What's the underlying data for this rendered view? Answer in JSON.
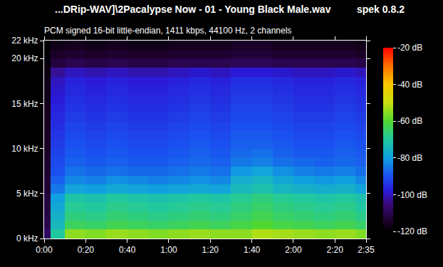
{
  "chart_data": {
    "type": "heatmap",
    "title": "...DRip-WAV]\\2Pacalypse Now - 01 - Young Black Male.wav",
    "subtitle": "PCM signed 16-bit little-endian, 1411 kbps, 44100 Hz, 2 channels",
    "annotations": [
      "spek 0.8.2"
    ],
    "xlim": [
      0,
      155
    ],
    "xticks": [
      {
        "value": 0,
        "label": "0:00"
      },
      {
        "value": 20,
        "label": "0:20"
      },
      {
        "value": 40,
        "label": "0:40"
      },
      {
        "value": 60,
        "label": "1:00"
      },
      {
        "value": 80,
        "label": "1:20"
      },
      {
        "value": 100,
        "label": "1:40"
      },
      {
        "value": 120,
        "label": "2:00"
      },
      {
        "value": 140,
        "label": "2:20"
      },
      {
        "value": 155,
        "label": "2:35"
      }
    ],
    "ylim": [
      0,
      22
    ],
    "yticks": [
      {
        "value": 0,
        "label": "0 kHz"
      },
      {
        "value": 5,
        "label": "5 kHz"
      },
      {
        "value": 10,
        "label": "10 kHz"
      },
      {
        "value": 15,
        "label": "15 kHz"
      },
      {
        "value": 20,
        "label": "20 kHz"
      },
      {
        "value": 22,
        "label": "22 kHz"
      }
    ],
    "cells": {
      "x_edges": [
        0,
        3,
        10,
        20,
        30,
        40,
        50,
        60,
        70,
        80,
        90,
        100,
        110,
        120,
        130,
        140,
        150,
        155
      ],
      "y_edges": [
        0,
        1,
        2,
        3,
        4,
        5,
        6,
        7,
        8,
        9,
        10,
        11,
        12,
        13,
        14,
        15,
        16,
        17,
        18,
        19,
        20,
        21,
        22
      ],
      "z": [
        [
          -108,
          -70,
          -55,
          -56,
          -54,
          -55,
          -56,
          -55,
          -54,
          -55,
          -55,
          -52,
          -53,
          -54,
          -55,
          -54,
          -56
        ],
        [
          -110,
          -74,
          -64,
          -65,
          -63,
          -64,
          -65,
          -64,
          -63,
          -64,
          -62,
          -60,
          -62,
          -63,
          -64,
          -63,
          -65
        ],
        [
          -111,
          -76,
          -67,
          -68,
          -66,
          -67,
          -68,
          -67,
          -66,
          -67,
          -65,
          -63,
          -65,
          -66,
          -67,
          -66,
          -68
        ],
        [
          -112,
          -78,
          -69,
          -70,
          -68,
          -69,
          -70,
          -69,
          -68,
          -69,
          -67,
          -65,
          -67,
          -68,
          -69,
          -68,
          -70
        ],
        [
          -112,
          -80,
          -71,
          -72,
          -70,
          -71,
          -72,
          -71,
          -70,
          -71,
          -69,
          -67,
          -69,
          -70,
          -71,
          -70,
          -72
        ],
        [
          -113,
          -85,
          -79,
          -80,
          -78,
          -79,
          -80,
          -79,
          -78,
          -79,
          -74,
          -72,
          -75,
          -76,
          -77,
          -76,
          -79
        ],
        [
          -113,
          -88,
          -83,
          -84,
          -82,
          -83,
          -84,
          -83,
          -82,
          -83,
          -77,
          -75,
          -78,
          -80,
          -81,
          -80,
          -83
        ],
        [
          -114,
          -90,
          -86,
          -87,
          -86,
          -87,
          -87,
          -86,
          -85,
          -86,
          -81,
          -79,
          -82,
          -84,
          -85,
          -84,
          -86
        ],
        [
          -114,
          -91,
          -88,
          -89,
          -88,
          -89,
          -89,
          -88,
          -87,
          -88,
          -85,
          -84,
          -86,
          -87,
          -88,
          -87,
          -88
        ],
        [
          -115,
          -92,
          -89,
          -90,
          -89,
          -90,
          -90,
          -89,
          -88,
          -89,
          -87,
          -86,
          -88,
          -89,
          -89,
          -88,
          -89
        ],
        [
          -115,
          -93,
          -90,
          -91,
          -90,
          -91,
          -91,
          -90,
          -89,
          -90,
          -88,
          -88,
          -89,
          -90,
          -90,
          -89,
          -90
        ],
        [
          -115,
          -94,
          -91,
          -92,
          -91,
          -92,
          -92,
          -91,
          -90,
          -91,
          -89,
          -89,
          -90,
          -91,
          -91,
          -90,
          -91
        ],
        [
          -116,
          -95,
          -92,
          -93,
          -92,
          -93,
          -93,
          -92,
          -91,
          -92,
          -90,
          -90,
          -91,
          -92,
          -92,
          -91,
          -92
        ],
        [
          -116,
          -96,
          -93,
          -94,
          -93,
          -94,
          -94,
          -93,
          -92,
          -93,
          -91,
          -91,
          -92,
          -93,
          -93,
          -92,
          -93
        ],
        [
          -116,
          -97,
          -94,
          -95,
          -94,
          -95,
          -95,
          -94,
          -93,
          -94,
          -92,
          -92,
          -93,
          -94,
          -94,
          -93,
          -94
        ],
        [
          -117,
          -98,
          -95,
          -96,
          -95,
          -96,
          -96,
          -95,
          -94,
          -95,
          -93,
          -93,
          -94,
          -95,
          -95,
          -94,
          -95
        ],
        [
          -117,
          -99,
          -96,
          -97,
          -96,
          -97,
          -97,
          -96,
          -95,
          -96,
          -94,
          -94,
          -95,
          -96,
          -96,
          -95,
          -96
        ],
        [
          -117,
          -100,
          -97,
          -98,
          -97,
          -98,
          -98,
          -97,
          -96,
          -97,
          -95,
          -95,
          -96,
          -97,
          -97,
          -96,
          -97
        ],
        [
          -118,
          -103,
          -100,
          -101,
          -100,
          -101,
          -101,
          -100,
          -99,
          -100,
          -98,
          -98,
          -99,
          -100,
          -100,
          -99,
          -100
        ],
        [
          -119,
          -112,
          -110,
          -111,
          -110,
          -111,
          -111,
          -110,
          -110,
          -110,
          -109,
          -109,
          -110,
          -110,
          -110,
          -110,
          -111
        ],
        [
          -119,
          -115,
          -114,
          -115,
          -114,
          -115,
          -115,
          -114,
          -114,
          -114,
          -113,
          -113,
          -114,
          -114,
          -114,
          -114,
          -115
        ],
        [
          -120,
          -117,
          -116,
          -117,
          -116,
          -117,
          -117,
          -116,
          -116,
          -116,
          -115,
          -115,
          -116,
          -116,
          -116,
          -116,
          -117
        ]
      ]
    },
    "colorbar": {
      "range": [
        -120,
        -20
      ],
      "ticks": [
        {
          "value": -20,
          "label": "-20 dB"
        },
        {
          "value": -40,
          "label": "-40 dB"
        },
        {
          "value": -60,
          "label": "-60 dB"
        },
        {
          "value": -80,
          "label": "-80 dB"
        },
        {
          "value": -100,
          "label": "-100 dB"
        },
        {
          "value": -120,
          "label": "-120 dB"
        }
      ]
    }
  }
}
